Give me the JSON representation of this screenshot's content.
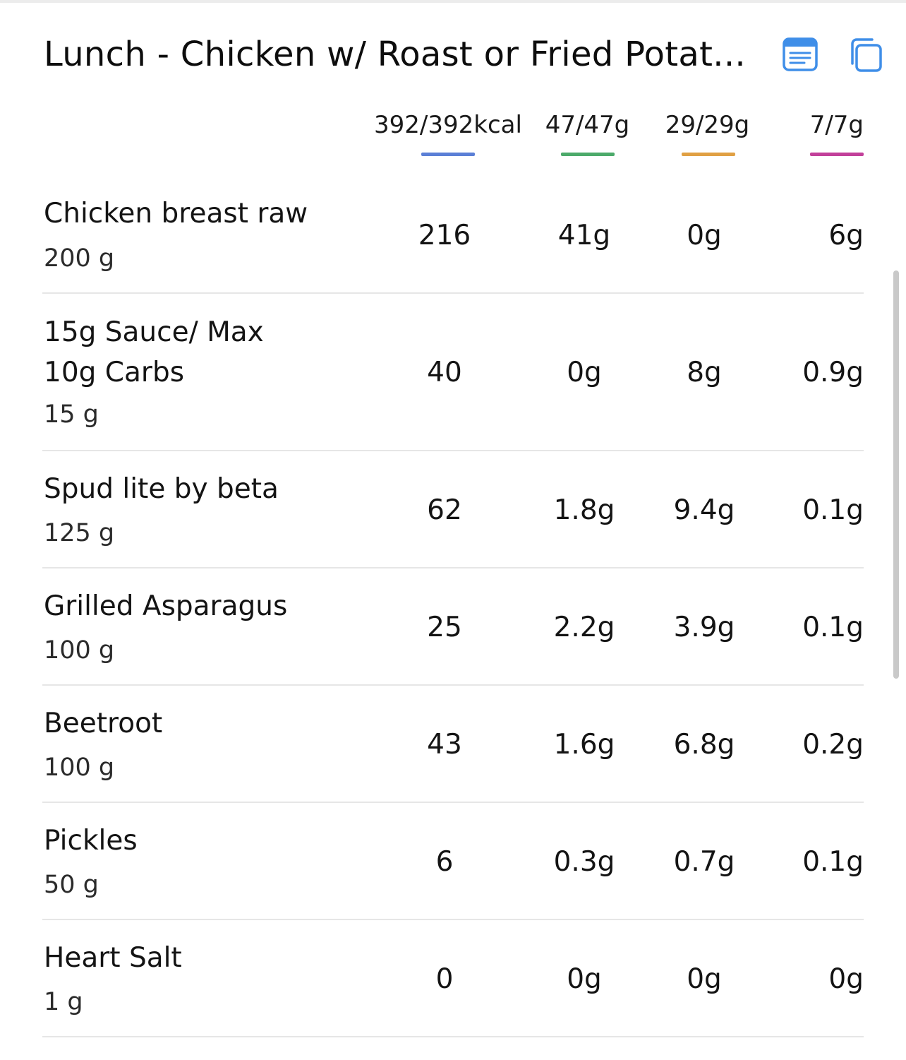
{
  "meal": {
    "title": "Lunch - Chicken w/ Roast or Fried Potat...",
    "notes_icon": "notes-icon",
    "copy_icon": "copy-icon"
  },
  "colors": {
    "accent": "#3f8ee8",
    "calories": "#5b7fd6",
    "protein": "#4caa6a",
    "carbs": "#e0a044",
    "fat": "#c2409a"
  },
  "totals": {
    "calories": "392/392kcal",
    "protein": "47/47g",
    "carbs": "29/29g",
    "fat": "7/7g"
  },
  "foods": [
    {
      "name": "Chicken breast raw",
      "amount": "200 g",
      "kcal": "216",
      "protein": "41g",
      "carbs": "0g",
      "fat": "6g"
    },
    {
      "name": "15g Sauce/ Max\n10g Carbs",
      "amount": "15 g",
      "kcal": "40",
      "protein": "0g",
      "carbs": "8g",
      "fat": "0.9g"
    },
    {
      "name": "Spud lite by beta",
      "amount": "125 g",
      "kcal": "62",
      "protein": "1.8g",
      "carbs": "9.4g",
      "fat": "0.1g"
    },
    {
      "name": "Grilled Asparagus",
      "amount": "100 g",
      "kcal": "25",
      "protein": "2.2g",
      "carbs": "3.9g",
      "fat": "0.1g"
    },
    {
      "name": "Beetroot",
      "amount": "100 g",
      "kcal": "43",
      "protein": "1.6g",
      "carbs": "6.8g",
      "fat": "0.2g"
    },
    {
      "name": "Pickles",
      "amount": "50 g",
      "kcal": "6",
      "protein": "0.3g",
      "carbs": "0.7g",
      "fat": "0.1g"
    },
    {
      "name": "Heart Salt",
      "amount": "1 g",
      "kcal": "0",
      "protein": "0g",
      "carbs": "0g",
      "fat": "0g"
    }
  ]
}
